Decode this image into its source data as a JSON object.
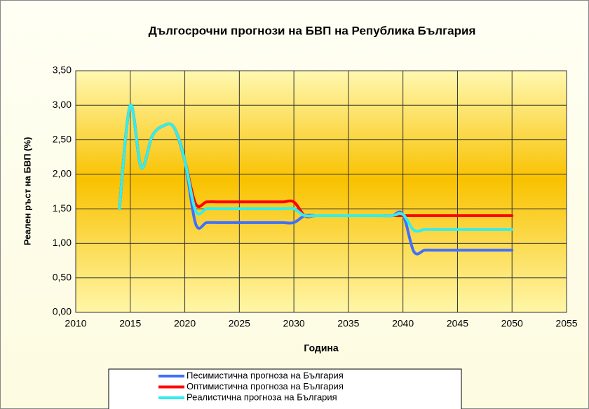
{
  "chart_data": {
    "type": "line",
    "title": "Дългосрочни прогнози на БВП на Република България",
    "x_label": "Година",
    "y_label": "Реален ръст на БВП (%)",
    "x": [
      2014,
      2015,
      2016,
      2017,
      2018,
      2019,
      2020,
      2021,
      2022,
      2023,
      2024,
      2025,
      2026,
      2027,
      2028,
      2029,
      2030,
      2031,
      2032,
      2033,
      2034,
      2035,
      2036,
      2037,
      2038,
      2039,
      2040,
      2041,
      2042,
      2043,
      2044,
      2045,
      2046,
      2047,
      2048,
      2049,
      2050
    ],
    "series": [
      {
        "name": "Песимистична прогноза на България",
        "color": "#3f6fff",
        "values": [
          1.5,
          3.0,
          2.1,
          2.55,
          2.7,
          2.68,
          2.2,
          1.28,
          1.3,
          1.3,
          1.3,
          1.3,
          1.3,
          1.3,
          1.3,
          1.3,
          1.3,
          1.4,
          1.4,
          1.4,
          1.4,
          1.4,
          1.4,
          1.4,
          1.4,
          1.4,
          1.42,
          0.88,
          0.9,
          0.9,
          0.9,
          0.9,
          0.9,
          0.9,
          0.9,
          0.9,
          0.9
        ]
      },
      {
        "name": "Оптимистична прогноза на България",
        "color": "#ff0000",
        "values": [
          1.5,
          3.0,
          2.1,
          2.55,
          2.7,
          2.68,
          2.2,
          1.57,
          1.6,
          1.6,
          1.6,
          1.6,
          1.6,
          1.6,
          1.6,
          1.6,
          1.6,
          1.4,
          1.4,
          1.4,
          1.4,
          1.4,
          1.4,
          1.4,
          1.4,
          1.4,
          1.4,
          1.4,
          1.4,
          1.4,
          1.4,
          1.4,
          1.4,
          1.4,
          1.4,
          1.4,
          1.4
        ]
      },
      {
        "name": "Реалистична прогноза на България",
        "color": "#33eeee",
        "values": [
          1.5,
          3.0,
          2.1,
          2.55,
          2.7,
          2.68,
          2.2,
          1.47,
          1.5,
          1.5,
          1.5,
          1.5,
          1.5,
          1.5,
          1.5,
          1.5,
          1.5,
          1.4,
          1.4,
          1.4,
          1.4,
          1.4,
          1.4,
          1.4,
          1.4,
          1.4,
          1.42,
          1.19,
          1.2,
          1.2,
          1.2,
          1.2,
          1.2,
          1.2,
          1.2,
          1.2,
          1.2
        ]
      }
    ],
    "xlim": [
      2010,
      2055
    ],
    "xticks": [
      2010,
      2015,
      2020,
      2025,
      2030,
      2035,
      2040,
      2045,
      2050,
      2055
    ],
    "ylim": [
      0,
      3.5
    ],
    "yticks": [
      {
        "value": 0,
        "label": "0,00"
      },
      {
        "value": 0.5,
        "label": "0,50"
      },
      {
        "value": 1,
        "label": "1,00"
      },
      {
        "value": 1.5,
        "label": "1,50"
      },
      {
        "value": 2,
        "label": "2,00"
      },
      {
        "value": 2.5,
        "label": "2,50"
      },
      {
        "value": 3,
        "label": "3,00"
      },
      {
        "value": 3.5,
        "label": "3,50"
      }
    ],
    "grid": true,
    "legend": "bottom"
  }
}
